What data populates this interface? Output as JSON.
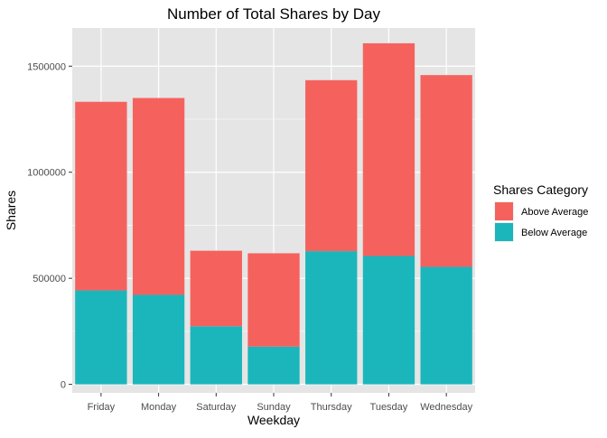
{
  "chart_data": {
    "type": "bar",
    "stacked": true,
    "title": "Number of Total Shares by Day",
    "xlabel": "Weekday",
    "ylabel": "Shares",
    "categories": [
      "Friday",
      "Monday",
      "Saturday",
      "Sunday",
      "Thursday",
      "Tuesday",
      "Wednesday"
    ],
    "series": [
      {
        "name": "Below Average",
        "color": "#1bb6bb",
        "values": [
          443000,
          422000,
          274000,
          178000,
          628000,
          605000,
          554000
        ]
      },
      {
        "name": "Above Average",
        "color": "#f5625e",
        "values": [
          889000,
          928000,
          356000,
          440000,
          806000,
          1003000,
          904000
        ]
      }
    ],
    "ylim": [
      -40000,
      1680000
    ],
    "yticks": [
      0,
      500000,
      1000000,
      1500000
    ],
    "ytick_labels": [
      "0",
      "500000",
      "1000000",
      "1500000"
    ],
    "grid": true,
    "legend": {
      "title": "Shares Category",
      "position": "right",
      "order": [
        "Above Average",
        "Below Average"
      ]
    }
  },
  "style": {
    "panel_background": "#e5e5e5",
    "grid_color": "#ffffff"
  }
}
